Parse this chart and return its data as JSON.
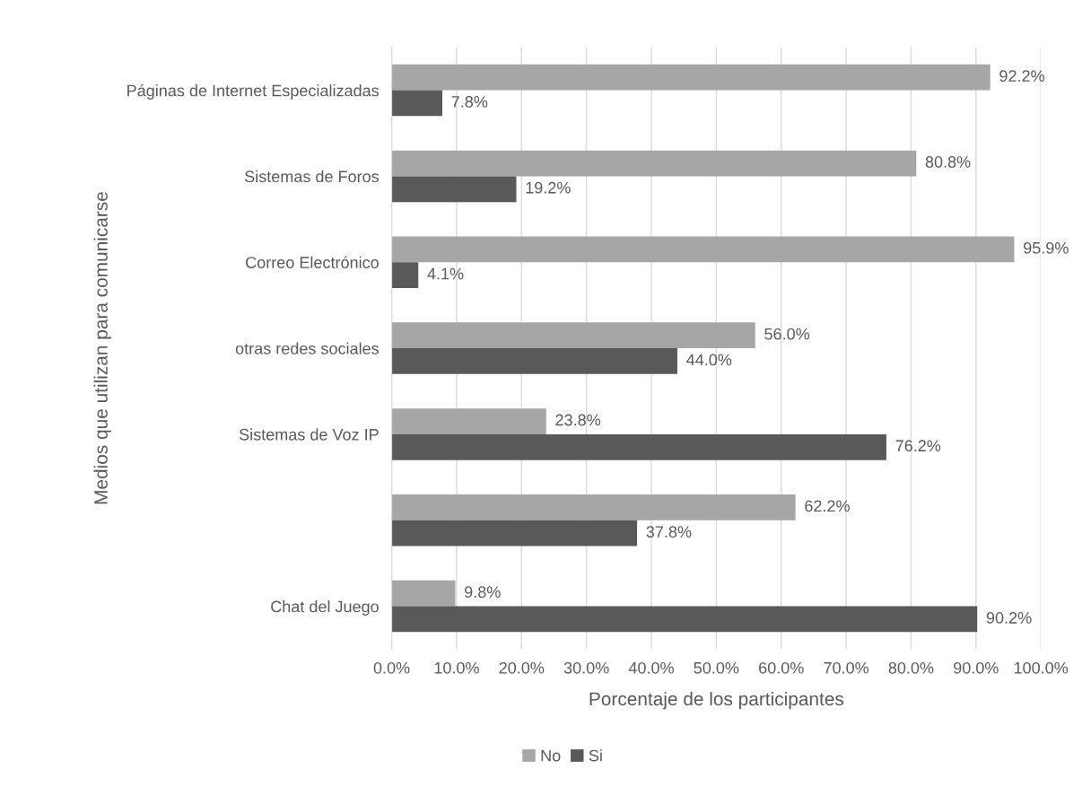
{
  "chart_data": {
    "type": "bar",
    "orientation": "horizontal",
    "xlabel": "Porcentaje de los participantes",
    "ylabel": "Medios que utilizan para comunicarse",
    "categories": [
      "Páginas de Internet Especializadas",
      "Sistemas de Foros",
      "Correo Electrónico",
      "otras redes sociales",
      "Sistemas de Voz IP",
      null,
      "Chat del Juego"
    ],
    "series": [
      {
        "name": "No",
        "color": "#a6a6a6",
        "values": [
          92.2,
          80.8,
          95.9,
          56.0,
          23.8,
          62.2,
          9.8
        ],
        "value_labels": [
          "92.2%",
          "80.8%",
          "95.9%",
          "56.0%",
          "23.8%",
          "62.2%",
          "9.8%"
        ]
      },
      {
        "name": "Si",
        "color": "#595959",
        "values": [
          7.8,
          19.2,
          4.1,
          44.0,
          76.2,
          37.8,
          90.2
        ],
        "value_labels": [
          "7.8%",
          "19.2%",
          "4.1%",
          "44.0%",
          "76.2%",
          "37.8%",
          "90.2%"
        ]
      }
    ],
    "xlim": [
      0,
      100
    ],
    "xticks": [
      {
        "value": 0,
        "label": "0.0%"
      },
      {
        "value": 10,
        "label": "10.0%"
      },
      {
        "value": 20,
        "label": "20.0%"
      },
      {
        "value": 30,
        "label": "30.0%"
      },
      {
        "value": 40,
        "label": "40.0%"
      },
      {
        "value": 50,
        "label": "50.0%"
      },
      {
        "value": 60,
        "label": "60.0%"
      },
      {
        "value": 70,
        "label": "70.0%"
      },
      {
        "value": 80,
        "label": "80.0%"
      },
      {
        "value": 90,
        "label": "90.0%"
      },
      {
        "value": 100,
        "label": "100.0%"
      }
    ],
    "grid": "x",
    "legend": "bottom"
  }
}
